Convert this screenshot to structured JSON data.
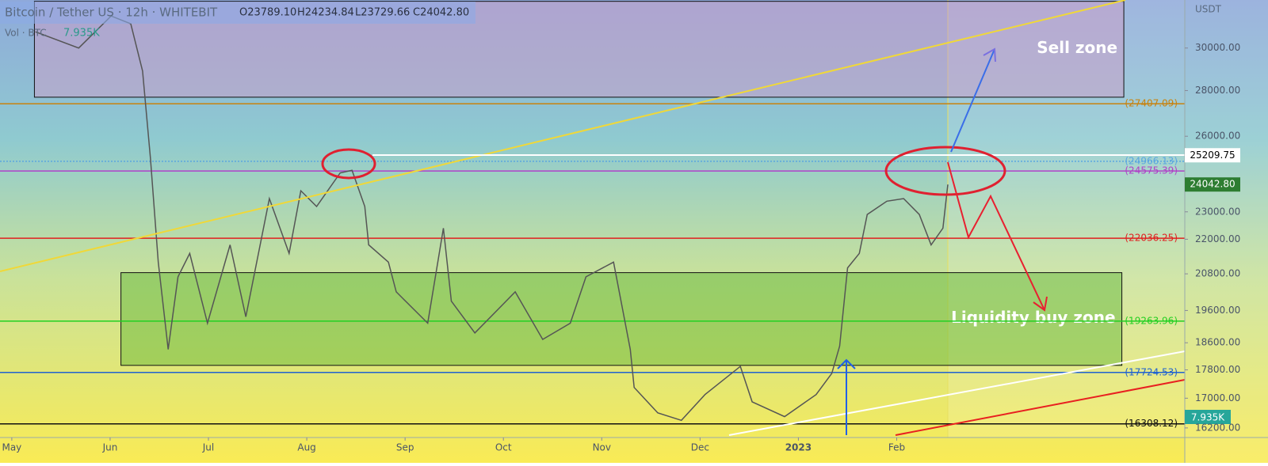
{
  "chart_data": {
    "type": "line",
    "title": "Bitcoin / Tether US · 12h · WHITEBIT",
    "ohlc": [
      "O23789.10",
      "H24234.84",
      "L23729.66",
      "C24042.80"
    ],
    "volume_label": "Vol · BTC",
    "volume": "7.935K",
    "currency": "USDT",
    "log_scale": true,
    "xlim": [
      -0.12,
      11.93
    ],
    "ylim": [
      15950,
      32430
    ],
    "xticks": [
      {
        "value": 0,
        "label": "May"
      },
      {
        "value": 1,
        "label": "Jun"
      },
      {
        "value": 2,
        "label": "Jul"
      },
      {
        "value": 3,
        "label": "Aug"
      },
      {
        "value": 4,
        "label": "Sep"
      },
      {
        "value": 5,
        "label": "Oct"
      },
      {
        "value": 6,
        "label": "Nov"
      },
      {
        "value": 7,
        "label": "Dec"
      },
      {
        "value": 8,
        "label": "2023"
      },
      {
        "value": 9,
        "label": "Feb"
      }
    ],
    "yticks": [
      {
        "value": 16200,
        "label": "16200.00"
      },
      {
        "value": 17000,
        "label": "17000.00"
      },
      {
        "value": 17800,
        "label": "17800.00"
      },
      {
        "value": 18600,
        "label": "18600.00"
      },
      {
        "value": 19600,
        "label": "19600.00"
      },
      {
        "value": 20800,
        "label": "20800.00"
      },
      {
        "value": 22000,
        "label": "22000.00"
      },
      {
        "value": 23000,
        "label": "23000.00"
      },
      {
        "value": 26000,
        "label": "26000.00"
      },
      {
        "value": 28000,
        "label": "28000.00"
      },
      {
        "value": 30000,
        "label": "30000.00"
      }
    ],
    "series": [
      {
        "name": "BTCUSDT",
        "color": "#555555",
        "x": [
          0.24,
          0.68,
          1.01,
          1.21,
          1.33,
          1.41,
          1.49,
          1.59,
          1.69,
          1.81,
          1.99,
          2.22,
          2.38,
          2.62,
          2.82,
          2.94,
          3.1,
          3.34,
          3.46,
          3.59,
          3.63,
          3.83,
          3.91,
          4.23,
          4.39,
          4.47,
          4.71,
          5.12,
          5.4,
          5.68,
          5.84,
          6.12,
          6.29,
          6.33,
          6.57,
          6.81,
          7.05,
          7.41,
          7.53,
          7.86,
          8.18,
          8.34,
          8.42,
          8.5,
          8.62,
          8.7,
          8.9,
          9.07,
          9.23,
          9.35,
          9.47,
          9.52
        ],
        "values": [
          30800,
          30000,
          31600,
          31200,
          28900,
          25100,
          21200,
          18400,
          20700,
          21500,
          19200,
          21800,
          19400,
          23500,
          21500,
          23800,
          23200,
          24500,
          24600,
          23200,
          21800,
          21200,
          20200,
          19200,
          22400,
          19900,
          18900,
          20200,
          18700,
          19200,
          20700,
          21200,
          18400,
          17300,
          16600,
          16400,
          17100,
          17900,
          16900,
          16500,
          17100,
          17700,
          18500,
          21000,
          21500,
          22900,
          23400,
          23500,
          22900,
          21800,
          22400,
          24042.8
        ]
      }
    ],
    "levels": [
      {
        "value": 27407.09,
        "label": "(27407.09)",
        "color": "#c8820e"
      },
      {
        "value": 24966.13,
        "label": "(24966.13)",
        "color": "#5aa6e0"
      },
      {
        "value": 24575.39,
        "label": "(24575.39)",
        "color": "#b040c8"
      },
      {
        "value": 22036.25,
        "label": "(22036.25)",
        "color": "#e02020"
      },
      {
        "value": 19263.96,
        "label": "(19263.96)",
        "color": "#22d022"
      },
      {
        "value": 17724.53,
        "label": "(17724.53)",
        "color": "#2062d0"
      },
      {
        "value": 16308.12,
        "label": "(16308.12)",
        "color": "#111111"
      }
    ],
    "price_tags": [
      {
        "value": 25209.75,
        "label": "25209.75",
        "color": "#ffffff",
        "text_color": "#000000"
      },
      {
        "value": 24042.8,
        "label": "24042.80",
        "color": "#2e7d32",
        "text_color": "#ffffff"
      }
    ],
    "zones": [
      {
        "label": "Sell zone",
        "x": [
          0.23,
          11.31
        ],
        "y": [
          27700,
          32360
        ],
        "color": "rgba(200,160,200,0.55)"
      },
      {
        "label": "Liquidity buy zone",
        "x": [
          1.11,
          11.29
        ],
        "y": [
          17930,
          20840
        ],
        "color": "rgba(90,180,50,0.45)"
      }
    ]
  }
}
